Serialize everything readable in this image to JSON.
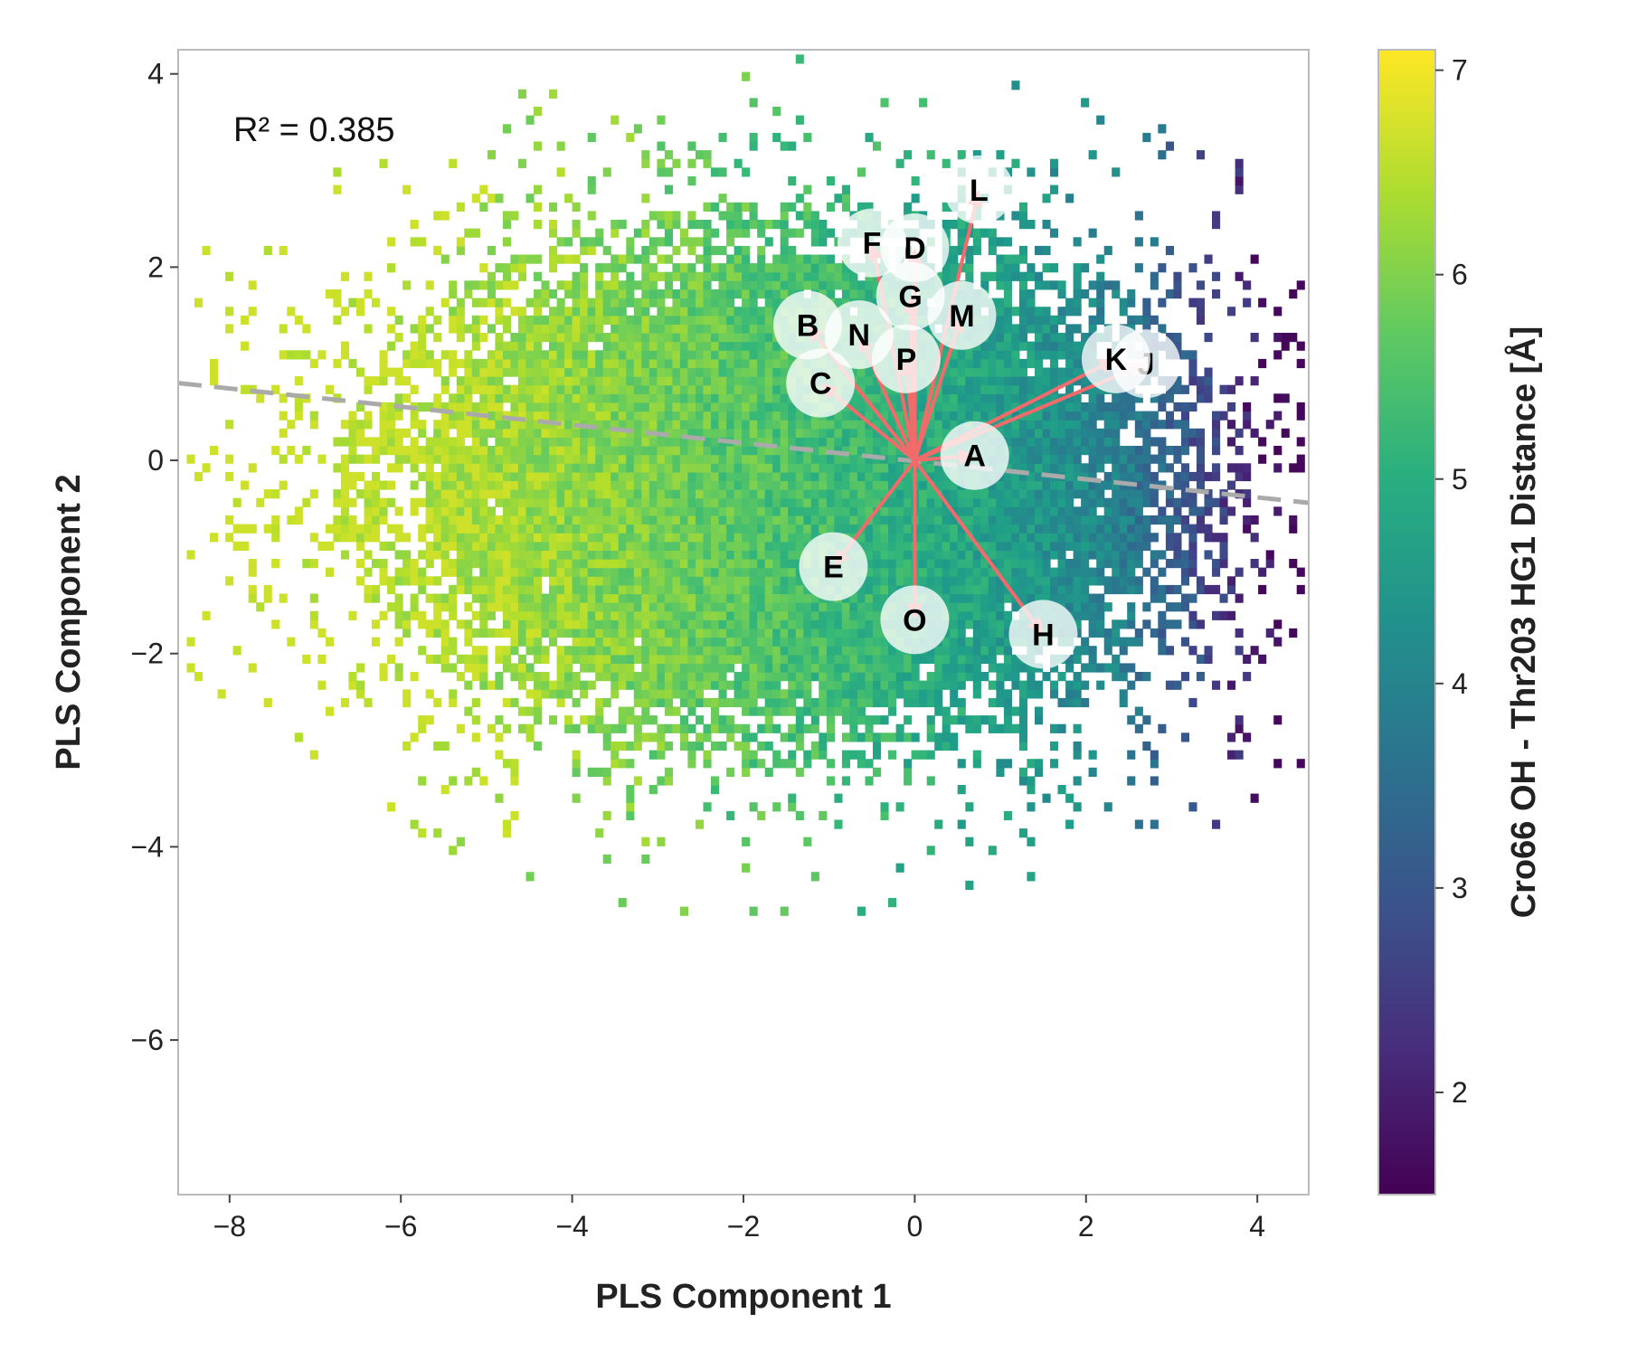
{
  "chart_data": {
    "type": "scatter",
    "subtype": "2d-binned-colored-scatter-with-loading-arrows",
    "xlabel": "PLS Component 1",
    "ylabel": "PLS Component 2",
    "xlim": [
      -8.6,
      4.6
    ],
    "ylim": [
      -7.6,
      4.25
    ],
    "x_ticks": [
      -8,
      -6,
      -4,
      -2,
      0,
      2,
      4
    ],
    "y_ticks": [
      -6,
      -4,
      -2,
      0,
      2,
      4
    ],
    "x_tick_labels": [
      "−8",
      "−6",
      "−4",
      "−2",
      "0",
      "2",
      "4"
    ],
    "y_tick_labels": [
      "−6",
      "−4",
      "−2",
      "0",
      "2",
      "4"
    ],
    "annotation": "R² = 0.385",
    "grid": false,
    "regression_line": {
      "x": [
        -8.6,
        4.6
      ],
      "y": [
        0.8,
        -0.44
      ],
      "color": "#aaaaaa",
      "style": "dashed"
    },
    "colorbar": {
      "label": "Cro66 OH - Thr203 HG1 Distance [Å]",
      "range": [
        1.5,
        7.1
      ],
      "ticks": [
        2,
        3,
        4,
        5,
        6,
        7
      ],
      "tick_labels": [
        "2",
        "3",
        "4",
        "5",
        "6",
        "7"
      ],
      "colormap": "viridis"
    },
    "arrow_origin": [
      0,
      0
    ],
    "arrow_color": "#f26b6b",
    "loadings": [
      {
        "label": "A",
        "x": 0.7,
        "y": 0.05
      },
      {
        "label": "B",
        "x": -1.25,
        "y": 1.4
      },
      {
        "label": "C",
        "x": -1.1,
        "y": 0.8
      },
      {
        "label": "D",
        "x": 0.0,
        "y": 2.2
      },
      {
        "label": "E",
        "x": -0.95,
        "y": -1.1
      },
      {
        "label": "F",
        "x": -0.5,
        "y": 2.25
      },
      {
        "label": "G",
        "x": -0.05,
        "y": 1.7
      },
      {
        "label": "H",
        "x": 1.5,
        "y": -1.8
      },
      {
        "label": "J",
        "x": 2.7,
        "y": 1.0
      },
      {
        "label": "K",
        "x": 2.35,
        "y": 1.05
      },
      {
        "label": "L",
        "x": 0.75,
        "y": 2.8
      },
      {
        "label": "M",
        "x": 0.55,
        "y": 1.5
      },
      {
        "label": "N",
        "x": -0.65,
        "y": 1.3
      },
      {
        "label": "O",
        "x": 0.0,
        "y": -1.65
      },
      {
        "label": "P",
        "x": -0.1,
        "y": 1.05
      }
    ],
    "density_region": {
      "x_range": [
        -8.5,
        4.5
      ],
      "y_range": [
        -7.5,
        4.2
      ],
      "core_center": [
        -1.5,
        -0.3
      ],
      "color_gradient": "distance decreases with increasing PLS Component 1; ~6.4 Å at x=-6, ~5 Å at x=0, ~1.7 Å at x=3.5"
    }
  }
}
